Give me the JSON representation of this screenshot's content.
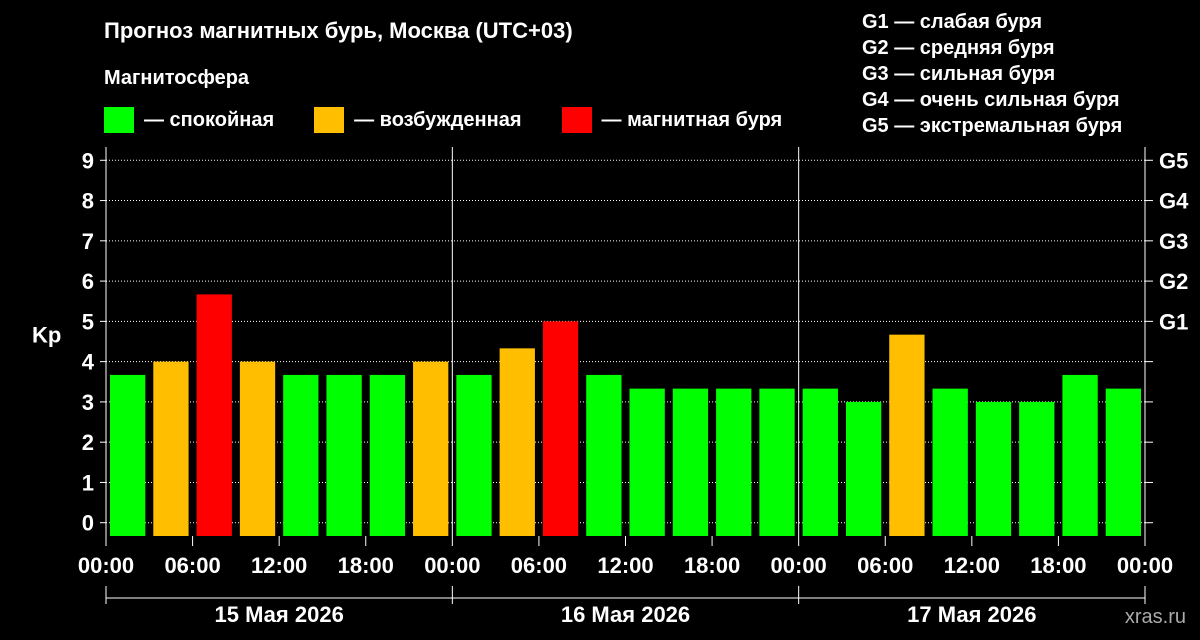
{
  "title": "Прогноз магнитных бурь, Москва (UTC+03)",
  "subtitle": "Магнитосфера",
  "legend": [
    {
      "label": "— спокойная",
      "color": "#00ff00"
    },
    {
      "label": "— возбужденная",
      "color": "#ffbf00"
    },
    {
      "label": "— магнитная буря",
      "color": "#ff0000"
    }
  ],
  "g_scale": [
    "G1 — слабая буря",
    "G2 — средняя буря",
    "G3 — сильная буря",
    "G4 — очень сильная буря",
    "G5 — экстремальная буря"
  ],
  "watermark": "xras.ru",
  "chart_data": {
    "type": "bar",
    "ylabel": "Kp",
    "ylim": [
      -0.33,
      9.33
    ],
    "yticks": [
      0,
      1,
      2,
      3,
      4,
      5,
      6,
      7,
      8,
      9
    ],
    "right_ticks": [
      {
        "value": 5,
        "label": "G1"
      },
      {
        "value": 6,
        "label": "G2"
      },
      {
        "value": 7,
        "label": "G3"
      },
      {
        "value": 8,
        "label": "G4"
      },
      {
        "value": 9,
        "label": "G5"
      }
    ],
    "x_tick_labels": [
      "00:00",
      "06:00",
      "12:00",
      "18:00",
      "00:00",
      "06:00",
      "12:00",
      "18:00",
      "00:00",
      "06:00",
      "12:00",
      "18:00",
      "00:00"
    ],
    "days": [
      "15 Мая 2026",
      "16 Мая 2026",
      "17 Мая 2026"
    ],
    "grid": true,
    "bars": [
      {
        "value": 3.67,
        "level": "quiet"
      },
      {
        "value": 4.0,
        "level": "active"
      },
      {
        "value": 5.67,
        "level": "storm"
      },
      {
        "value": 4.0,
        "level": "active"
      },
      {
        "value": 3.67,
        "level": "quiet"
      },
      {
        "value": 3.67,
        "level": "quiet"
      },
      {
        "value": 3.67,
        "level": "quiet"
      },
      {
        "value": 4.0,
        "level": "active"
      },
      {
        "value": 3.67,
        "level": "quiet"
      },
      {
        "value": 4.33,
        "level": "active"
      },
      {
        "value": 5.0,
        "level": "storm"
      },
      {
        "value": 3.67,
        "level": "quiet"
      },
      {
        "value": 3.33,
        "level": "quiet"
      },
      {
        "value": 3.33,
        "level": "quiet"
      },
      {
        "value": 3.33,
        "level": "quiet"
      },
      {
        "value": 3.33,
        "level": "quiet"
      },
      {
        "value": 3.33,
        "level": "quiet"
      },
      {
        "value": 3.0,
        "level": "quiet"
      },
      {
        "value": 4.67,
        "level": "active"
      },
      {
        "value": 3.33,
        "level": "quiet"
      },
      {
        "value": 3.0,
        "level": "quiet"
      },
      {
        "value": 3.0,
        "level": "quiet"
      },
      {
        "value": 3.67,
        "level": "quiet"
      },
      {
        "value": 3.33,
        "level": "quiet"
      }
    ],
    "level_colors": {
      "quiet": "#00ff00",
      "active": "#ffbf00",
      "storm": "#ff0000"
    }
  }
}
